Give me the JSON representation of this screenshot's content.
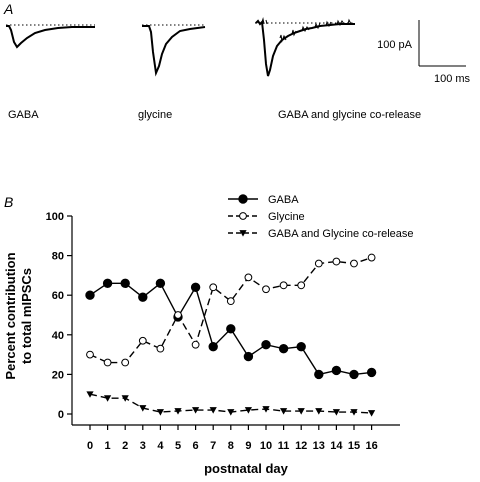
{
  "panel_a": {
    "letter": "A",
    "trace_labels": [
      "GABA",
      "glycine",
      "GABA and glycine co-release"
    ],
    "scale_bar": {
      "amplitude_label": "100 pA",
      "time_label": "100 ms"
    }
  },
  "panel_b": {
    "letter": "B"
  },
  "chart_data": {
    "type": "line",
    "title": "",
    "xlabel": "postnatal day",
    "ylabel_lines": [
      "Percent contribution",
      "to total mIPSCs"
    ],
    "x": [
      0,
      1,
      2,
      3,
      4,
      5,
      6,
      7,
      8,
      9,
      10,
      11,
      12,
      13,
      14,
      15,
      16
    ],
    "xticks": [
      "0",
      "1",
      "2",
      "3",
      "4",
      "5",
      "6",
      "7",
      "8",
      "9",
      "10",
      "11",
      "12",
      "13",
      "14",
      "15",
      "16"
    ],
    "ylim": [
      0,
      100
    ],
    "yticks": [
      "0",
      "20",
      "40",
      "60",
      "80",
      "100"
    ],
    "legend_position": "top-right",
    "series": [
      {
        "name": "GABA",
        "marker": "filled-circle",
        "line": "solid",
        "values": [
          60,
          66,
          66,
          59,
          66,
          49,
          64,
          34,
          43,
          29,
          35,
          33,
          34,
          20,
          22,
          20,
          21
        ]
      },
      {
        "name": "Glycine",
        "marker": "open-circle",
        "line": "dashed",
        "values": [
          30,
          26,
          26,
          37,
          33,
          50,
          35,
          64,
          57,
          69,
          63,
          65,
          65,
          76,
          77,
          76,
          79
        ]
      },
      {
        "name": "GABA and Glycine co-release",
        "marker": "filled-triangle-down",
        "line": "dashed",
        "values": [
          10,
          8,
          8,
          3,
          1,
          1.5,
          2,
          2,
          1,
          2,
          2.5,
          1.5,
          1.5,
          1.5,
          1,
          1,
          0.5
        ]
      }
    ]
  }
}
